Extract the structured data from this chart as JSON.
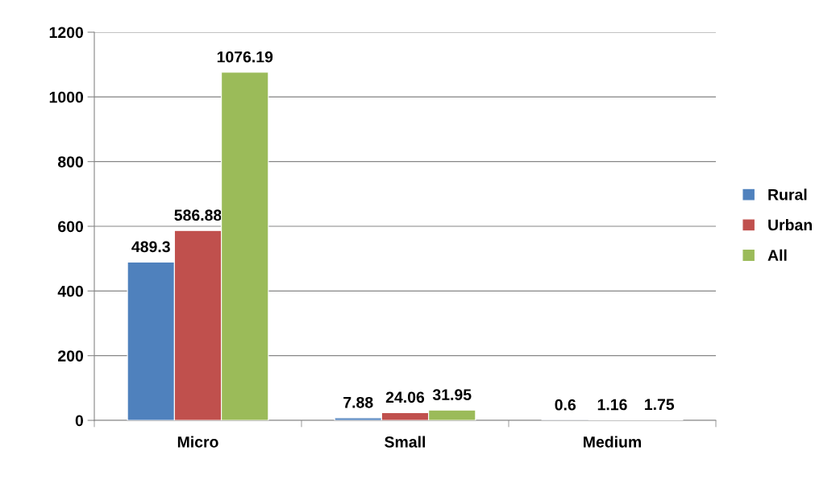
{
  "chart_data": {
    "type": "bar",
    "categories": [
      "Micro",
      "Small",
      "Medium"
    ],
    "series": [
      {
        "name": "Rural",
        "color": "#4f81bd",
        "values": [
          489.3,
          7.88,
          0.6
        ]
      },
      {
        "name": "Urban",
        "color": "#c0504d",
        "values": [
          586.88,
          24.06,
          1.16
        ]
      },
      {
        "name": "All",
        "color": "#9bbb59",
        "values": [
          1076.19,
          31.95,
          1.75
        ]
      }
    ],
    "ylim": [
      0,
      1200
    ],
    "yticks": [
      0,
      200,
      400,
      600,
      800,
      1000,
      1200
    ],
    "grid": "y",
    "legend": "right",
    "data_labels": true
  }
}
